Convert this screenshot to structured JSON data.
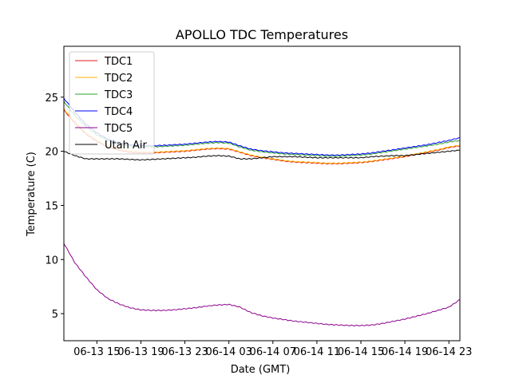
{
  "chart_data": {
    "type": "line",
    "title": "APOLLO TDC Temperatures",
    "xlabel": "Date (GMT)",
    "ylabel": "Temperature (C)",
    "x_unit": "hours since 06-13 00:00 GMT",
    "xlim": [
      12,
      48
    ],
    "ylim": [
      2.5,
      29.7
    ],
    "x_ticks": [
      {
        "value": 15,
        "label": "06-13 15"
      },
      {
        "value": 19,
        "label": "06-13 19"
      },
      {
        "value": 23,
        "label": "06-13 23"
      },
      {
        "value": 27,
        "label": "06-14 03"
      },
      {
        "value": 31,
        "label": "06-14 07"
      },
      {
        "value": 35,
        "label": "06-14 11"
      },
      {
        "value": 39,
        "label": "06-14 15"
      },
      {
        "value": 43,
        "label": "06-14 19"
      },
      {
        "value": 47,
        "label": "06-14 23"
      }
    ],
    "y_ticks": [
      {
        "value": 5,
        "label": "5"
      },
      {
        "value": 10,
        "label": "10"
      },
      {
        "value": 15,
        "label": "15"
      },
      {
        "value": 20,
        "label": "20"
      },
      {
        "value": 25,
        "label": "25"
      }
    ],
    "grid": false,
    "legend_position": "top-left",
    "x": [
      12,
      13,
      14,
      15,
      16,
      17,
      18,
      19,
      20,
      21,
      22,
      23,
      24,
      25,
      26,
      27,
      28,
      29,
      30,
      31,
      32,
      33,
      34,
      35,
      36,
      37,
      38,
      39,
      40,
      41,
      42,
      43,
      44,
      45,
      46,
      47,
      48
    ],
    "series": [
      {
        "name": "TDC1",
        "color": "#e41a1c",
        "values": [
          23.8,
          22.6,
          21.6,
          20.9,
          20.4,
          20.1,
          19.9,
          19.85,
          19.85,
          19.9,
          19.95,
          20.0,
          20.1,
          20.2,
          20.25,
          20.2,
          19.9,
          19.6,
          19.4,
          19.25,
          19.1,
          19.0,
          18.95,
          18.9,
          18.85,
          18.85,
          18.9,
          18.95,
          19.05,
          19.2,
          19.35,
          19.5,
          19.7,
          19.9,
          20.1,
          20.35,
          20.5
        ]
      },
      {
        "name": "TDC2",
        "color": "#ffb000",
        "values": [
          23.9,
          22.7,
          21.7,
          21.0,
          20.5,
          20.2,
          20.0,
          19.95,
          19.9,
          19.95,
          20.0,
          20.05,
          20.15,
          20.25,
          20.3,
          20.25,
          19.95,
          19.65,
          19.45,
          19.3,
          19.15,
          19.05,
          19.0,
          18.95,
          18.9,
          18.9,
          18.95,
          19.0,
          19.1,
          19.25,
          19.4,
          19.55,
          19.75,
          19.95,
          20.15,
          20.4,
          20.55
        ]
      },
      {
        "name": "TDC3",
        "color": "#2ca02c",
        "values": [
          24.6,
          23.3,
          22.3,
          21.5,
          21.0,
          20.7,
          20.5,
          20.45,
          20.4,
          20.45,
          20.5,
          20.55,
          20.65,
          20.75,
          20.8,
          20.75,
          20.4,
          20.1,
          19.95,
          19.85,
          19.75,
          19.7,
          19.65,
          19.6,
          19.55,
          19.55,
          19.6,
          19.65,
          19.75,
          19.9,
          20.05,
          20.2,
          20.35,
          20.5,
          20.65,
          20.85,
          21.0
        ]
      },
      {
        "name": "TDC4",
        "color": "#0000ff",
        "values": [
          24.9,
          23.6,
          22.5,
          21.7,
          21.1,
          20.8,
          20.6,
          20.55,
          20.5,
          20.55,
          20.6,
          20.65,
          20.75,
          20.85,
          20.9,
          20.85,
          20.5,
          20.2,
          20.05,
          19.95,
          19.85,
          19.8,
          19.75,
          19.7,
          19.65,
          19.65,
          19.7,
          19.75,
          19.85,
          20.0,
          20.15,
          20.3,
          20.45,
          20.6,
          20.8,
          21.0,
          21.25
        ]
      },
      {
        "name": "TDC5",
        "color": "#8b008b",
        "values": [
          11.5,
          9.7,
          8.4,
          7.2,
          6.4,
          5.9,
          5.55,
          5.35,
          5.3,
          5.3,
          5.35,
          5.45,
          5.55,
          5.7,
          5.8,
          5.85,
          5.6,
          5.1,
          4.8,
          4.6,
          4.45,
          4.3,
          4.2,
          4.1,
          4.0,
          3.95,
          3.9,
          3.9,
          3.95,
          4.1,
          4.3,
          4.5,
          4.75,
          5.0,
          5.3,
          5.6,
          6.3
        ]
      },
      {
        "name": "Utah Air",
        "color": "#000000",
        "values": [
          20.0,
          19.6,
          19.3,
          19.3,
          19.3,
          19.3,
          19.25,
          19.2,
          19.25,
          19.3,
          19.35,
          19.4,
          19.45,
          19.55,
          19.6,
          19.55,
          19.3,
          19.3,
          19.4,
          19.5,
          19.5,
          19.5,
          19.45,
          19.4,
          19.4,
          19.4,
          19.4,
          19.4,
          19.5,
          19.55,
          19.6,
          19.6,
          19.7,
          19.8,
          19.9,
          20.0,
          20.1
        ]
      }
    ]
  }
}
